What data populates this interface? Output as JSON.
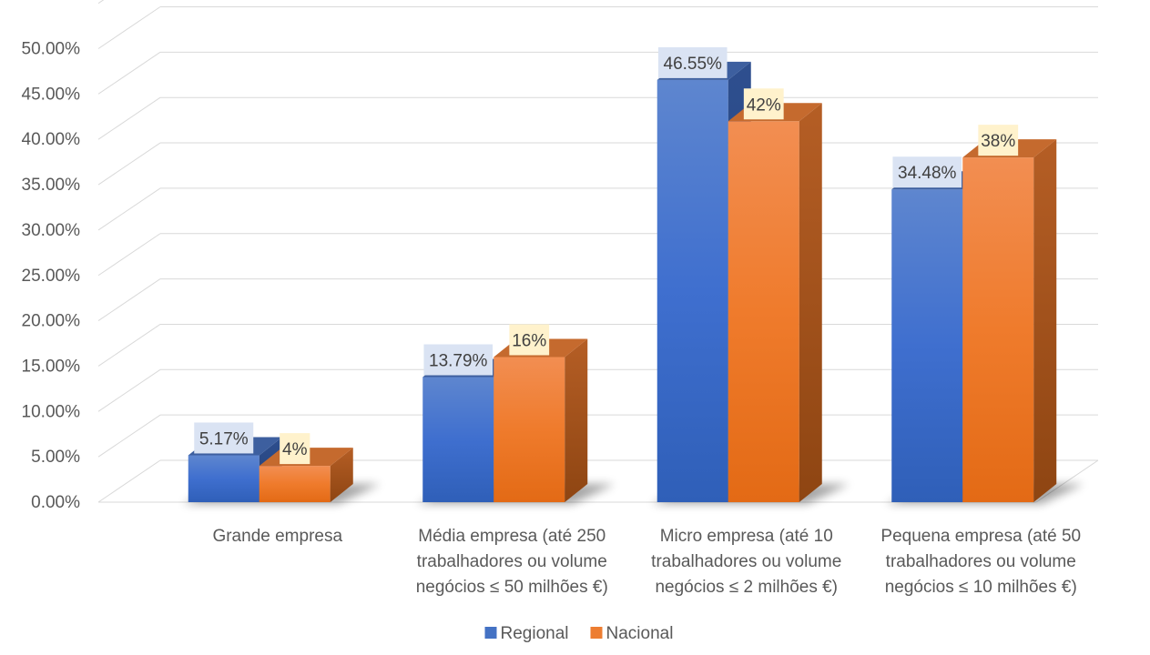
{
  "chart_data": {
    "type": "bar",
    "title": "",
    "xlabel": "",
    "ylabel": "",
    "categories": [
      [
        "Grande empresa"
      ],
      [
        "Média empresa (até 250",
        "trabalhadores ou volume",
        "negócios ≤ 50 milhões €)"
      ],
      [
        "Micro empresa (até 10",
        "trabalhadores ou volume",
        "negócios ≤ 2 milhões €)"
      ],
      [
        "Pequena empresa (até 50",
        "trabalhadores ou volume",
        "negócios ≤ 10 milhões €)"
      ]
    ],
    "series": [
      {
        "name": "Regional",
        "values": [
          5.17,
          13.79,
          46.55,
          34.48
        ],
        "labels": [
          "5.17%",
          "13.79%",
          "46.55%",
          "34.48%"
        ],
        "color": "#4472C4",
        "label_bg": "#DAE3F3"
      },
      {
        "name": "Nacional",
        "values": [
          4,
          16,
          42,
          38
        ],
        "labels": [
          "4%",
          "16%",
          "42%",
          "38%"
        ],
        "color": "#ED7D31",
        "label_bg": "#FFF2CC"
      }
    ],
    "ylim": [
      0,
      50
    ],
    "ytick_step": 5,
    "ytick_labels": [
      "0.00%",
      "5.00%",
      "10.00%",
      "15.00%",
      "20.00%",
      "25.00%",
      "30.00%",
      "35.00%",
      "40.00%",
      "45.00%",
      "50.00%"
    ],
    "grid": true,
    "legend_position": "bottom",
    "style": "3d-column"
  }
}
